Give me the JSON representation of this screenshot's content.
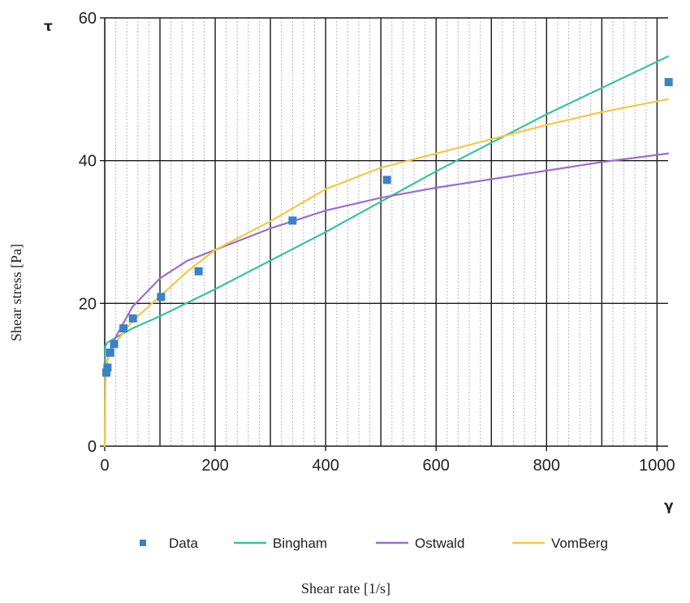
{
  "chart_data": {
    "type": "scatter",
    "xlabel": "Shear rate [1/s]",
    "ylabel": "Shear stress [Pa]",
    "x_symbol": "γ",
    "y_symbol": "τ",
    "xlim": [
      0,
      1020
    ],
    "ylim": [
      0,
      60
    ],
    "x_ticks": [
      0,
      200,
      400,
      600,
      800,
      1000
    ],
    "y_ticks": [
      0,
      20,
      40,
      60
    ],
    "x_tick_labels": [
      "0",
      "200",
      "400",
      "600",
      "800",
      "1000"
    ],
    "y_tick_labels": [
      "0",
      "20",
      "40",
      "60"
    ],
    "grid": true,
    "legend_position": "bottom",
    "series": [
      {
        "name": "Data",
        "kind": "points",
        "color": "#3b82c4",
        "x": [
          3,
          5,
          10,
          17,
          34,
          51,
          102,
          170,
          340,
          511,
          1021
        ],
        "y": [
          10.3,
          11.0,
          13.1,
          14.3,
          16.5,
          17.9,
          20.9,
          24.5,
          31.6,
          37.3,
          51.0
        ]
      },
      {
        "name": "Bingham",
        "kind": "line",
        "color": "#3dbfa0",
        "x": [
          0,
          1,
          5,
          20,
          50,
          100,
          200,
          400,
          600,
          800,
          1020
        ],
        "y": [
          0,
          14.0,
          14.5,
          15.2,
          16.5,
          18.2,
          22.0,
          30.0,
          38.5,
          46.5,
          54.6
        ]
      },
      {
        "name": "Ostwald",
        "kind": "line",
        "color": "#9b6fc9",
        "x": [
          0,
          1,
          3,
          5,
          10,
          20,
          50,
          100,
          150,
          200,
          300,
          400,
          500,
          600,
          700,
          800,
          900,
          1020
        ],
        "y": [
          0,
          9.0,
          11.0,
          12.0,
          13.5,
          15.3,
          19.5,
          23.5,
          26.0,
          27.5,
          30.5,
          33.0,
          34.8,
          36.2,
          37.4,
          38.6,
          39.8,
          41.0
        ]
      },
      {
        "name": "VomBerg",
        "kind": "line",
        "color": "#f2c84b",
        "x": [
          0,
          1,
          3,
          5,
          10,
          20,
          50,
          100,
          150,
          200,
          300,
          400,
          500,
          600,
          700,
          800,
          900,
          1020
        ],
        "y": [
          0,
          10.5,
          11.3,
          12.0,
          13.0,
          14.5,
          17.5,
          21.0,
          24.5,
          27.5,
          31.5,
          36.0,
          39.0,
          41.0,
          43.0,
          45.0,
          46.8,
          48.6
        ]
      }
    ]
  }
}
